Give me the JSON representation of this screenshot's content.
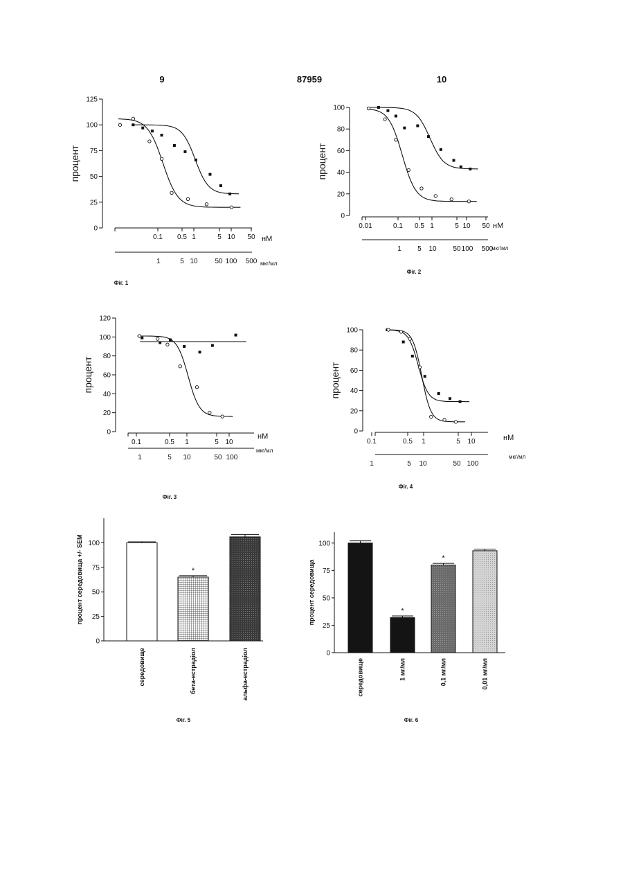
{
  "header": {
    "left": "9",
    "center": "87959",
    "right": "10"
  },
  "chart_data": [
    {
      "id": "fig1",
      "type": "scatter",
      "caption": "Фіг. 1",
      "ylabel": "процент",
      "ylim": [
        0,
        125
      ],
      "yticks": [
        "0",
        "25",
        "50",
        "75",
        "100",
        "125"
      ],
      "x_axis1": {
        "unit": "нМ",
        "ticks": [
          "0.1",
          "0.5",
          "1",
          "5",
          "10",
          "50"
        ]
      },
      "x_axis2": {
        "unit": "мкг/мл",
        "ticks": [
          "1",
          "5",
          "10",
          "50",
          "100",
          "500"
        ]
      },
      "series": [
        {
          "marker": "filled",
          "points": [
            [
              0.035,
              100
            ],
            [
              0.065,
              97
            ],
            [
              0.12,
              94
            ],
            [
              0.22,
              90
            ],
            [
              0.5,
              80
            ],
            [
              1.0,
              74
            ],
            [
              2.0,
              66
            ],
            [
              5,
              52
            ],
            [
              10,
              41
            ],
            [
              18,
              33
            ]
          ]
        },
        {
          "marker": "open",
          "points": [
            [
              0.015,
              100
            ],
            [
              0.035,
              106
            ],
            [
              0.1,
              84
            ],
            [
              0.22,
              67
            ],
            [
              0.42,
              34
            ],
            [
              1.2,
              28
            ],
            [
              4,
              23
            ],
            [
              20,
              20
            ]
          ]
        }
      ]
    },
    {
      "id": "fig2",
      "type": "scatter",
      "caption": "Фіг. 2",
      "ylabel": "процент",
      "ylim": [
        0,
        100
      ],
      "yticks": [
        "0",
        "20",
        "40",
        "60",
        "80",
        "100"
      ],
      "x_axis1": {
        "unit": "нМ",
        "ticks": [
          "0.01",
          "0.1",
          "0.5",
          "1",
          "5",
          "10",
          "50"
        ]
      },
      "x_axis2": {
        "unit": "мкг/мл",
        "ticks": [
          "1",
          "5",
          "10",
          "50",
          "100",
          "500"
        ]
      },
      "series": [
        {
          "marker": "filled",
          "points": [
            [
              0.012,
              99
            ],
            [
              0.025,
              100
            ],
            [
              0.05,
              97
            ],
            [
              0.09,
              92
            ],
            [
              0.17,
              81
            ],
            [
              0.45,
              83
            ],
            [
              1.0,
              73
            ],
            [
              2.5,
              61
            ],
            [
              6.5,
              51
            ],
            [
              11,
              45
            ],
            [
              22,
              43
            ]
          ]
        },
        {
          "marker": "open",
          "points": [
            [
              0.012,
              99
            ],
            [
              0.04,
              89
            ],
            [
              0.09,
              70
            ],
            [
              0.23,
              42
            ],
            [
              0.6,
              25
            ],
            [
              1.7,
              18
            ],
            [
              5.5,
              15
            ],
            [
              20,
              13
            ]
          ]
        }
      ]
    },
    {
      "id": "fig3",
      "type": "scatter",
      "caption": "Фіг. 3",
      "ylabel": "процент",
      "ylim": [
        0,
        120
      ],
      "yticks": [
        "0",
        "20",
        "40",
        "60",
        "80",
        "100",
        "120"
      ],
      "x_axis1": {
        "unit": "нМ",
        "ticks": [
          "0.1",
          "0.5",
          "1",
          "5",
          "10"
        ]
      },
      "x_axis2": {
        "unit": "мкг/мл",
        "ticks": [
          "1",
          "5",
          "10",
          "50",
          "100"
        ]
      },
      "series": [
        {
          "marker": "filled",
          "points": [
            [
              0.15,
              99
            ],
            [
              0.4,
              94
            ],
            [
              0.7,
              97
            ],
            [
              1.5,
              90
            ],
            [
              3.5,
              84
            ],
            [
              7,
              91
            ],
            [
              25,
              102
            ]
          ]
        },
        {
          "marker": "open",
          "points": [
            [
              0.13,
              101
            ],
            [
              0.35,
              98
            ],
            [
              0.6,
              92
            ],
            [
              1.2,
              69
            ],
            [
              3,
              47
            ],
            [
              6,
              20
            ],
            [
              12,
              16
            ]
          ]
        }
      ]
    },
    {
      "id": "fig4",
      "type": "scatter",
      "caption": "Фіг. 4",
      "ylabel": "процент",
      "ylim": [
        0,
        100
      ],
      "yticks": [
        "0",
        "20",
        "40",
        "60",
        "80",
        "100"
      ],
      "x_axis1": {
        "unit": "нМ",
        "ticks": [
          "0.1",
          "0.5",
          "1",
          "5",
          "10"
        ]
      },
      "x_axis2": {
        "unit": "мкг/мл",
        "ticks": [
          "1",
          "5",
          "10",
          "50",
          "100"
        ]
      },
      "series": [
        {
          "marker": "filled",
          "points": [
            [
              0.15,
              100
            ],
            [
              0.4,
              88
            ],
            [
              0.7,
              74
            ],
            [
              1.5,
              54
            ],
            [
              3.5,
              37
            ],
            [
              7,
              32
            ],
            [
              13,
              29
            ]
          ]
        },
        {
          "marker": "open",
          "points": [
            [
              0.16,
              100
            ],
            [
              0.35,
              98
            ],
            [
              0.6,
              91
            ],
            [
              1.1,
              63
            ],
            [
              2.2,
              14
            ],
            [
              5,
              11
            ],
            [
              10,
              9
            ]
          ]
        }
      ]
    },
    {
      "id": "fig5",
      "type": "bar",
      "caption": "Фіг. 5",
      "ylabel": "процент середовища +/- SEM",
      "ylim": [
        0,
        125
      ],
      "yticks": [
        "0",
        "25",
        "50",
        "75",
        "100"
      ],
      "categories": [
        "середовище",
        "бета-естрадіол",
        "альфа-естрадіол"
      ],
      "values": [
        100,
        65,
        106
      ],
      "errors": [
        1,
        1.5,
        2.5
      ],
      "annotations": [
        "",
        "*",
        ""
      ],
      "fills": [
        "open",
        "grid",
        "dark"
      ]
    },
    {
      "id": "fig6",
      "type": "bar",
      "caption": "Фіг. 6",
      "ylabel": "процент середовища",
      "ylim": [
        0,
        110
      ],
      "yticks": [
        "0",
        "25",
        "50",
        "75",
        "100"
      ],
      "categories": [
        "середовище",
        "1 мг/мл",
        "0,1 мг/мл",
        "0,01 мг/мл"
      ],
      "values": [
        100,
        32,
        80,
        93
      ],
      "errors": [
        2,
        1.5,
        1.5,
        1.5
      ],
      "annotations": [
        "",
        "*",
        "*",
        ""
      ],
      "fills": [
        "black",
        "black",
        "mid",
        "light"
      ]
    }
  ]
}
